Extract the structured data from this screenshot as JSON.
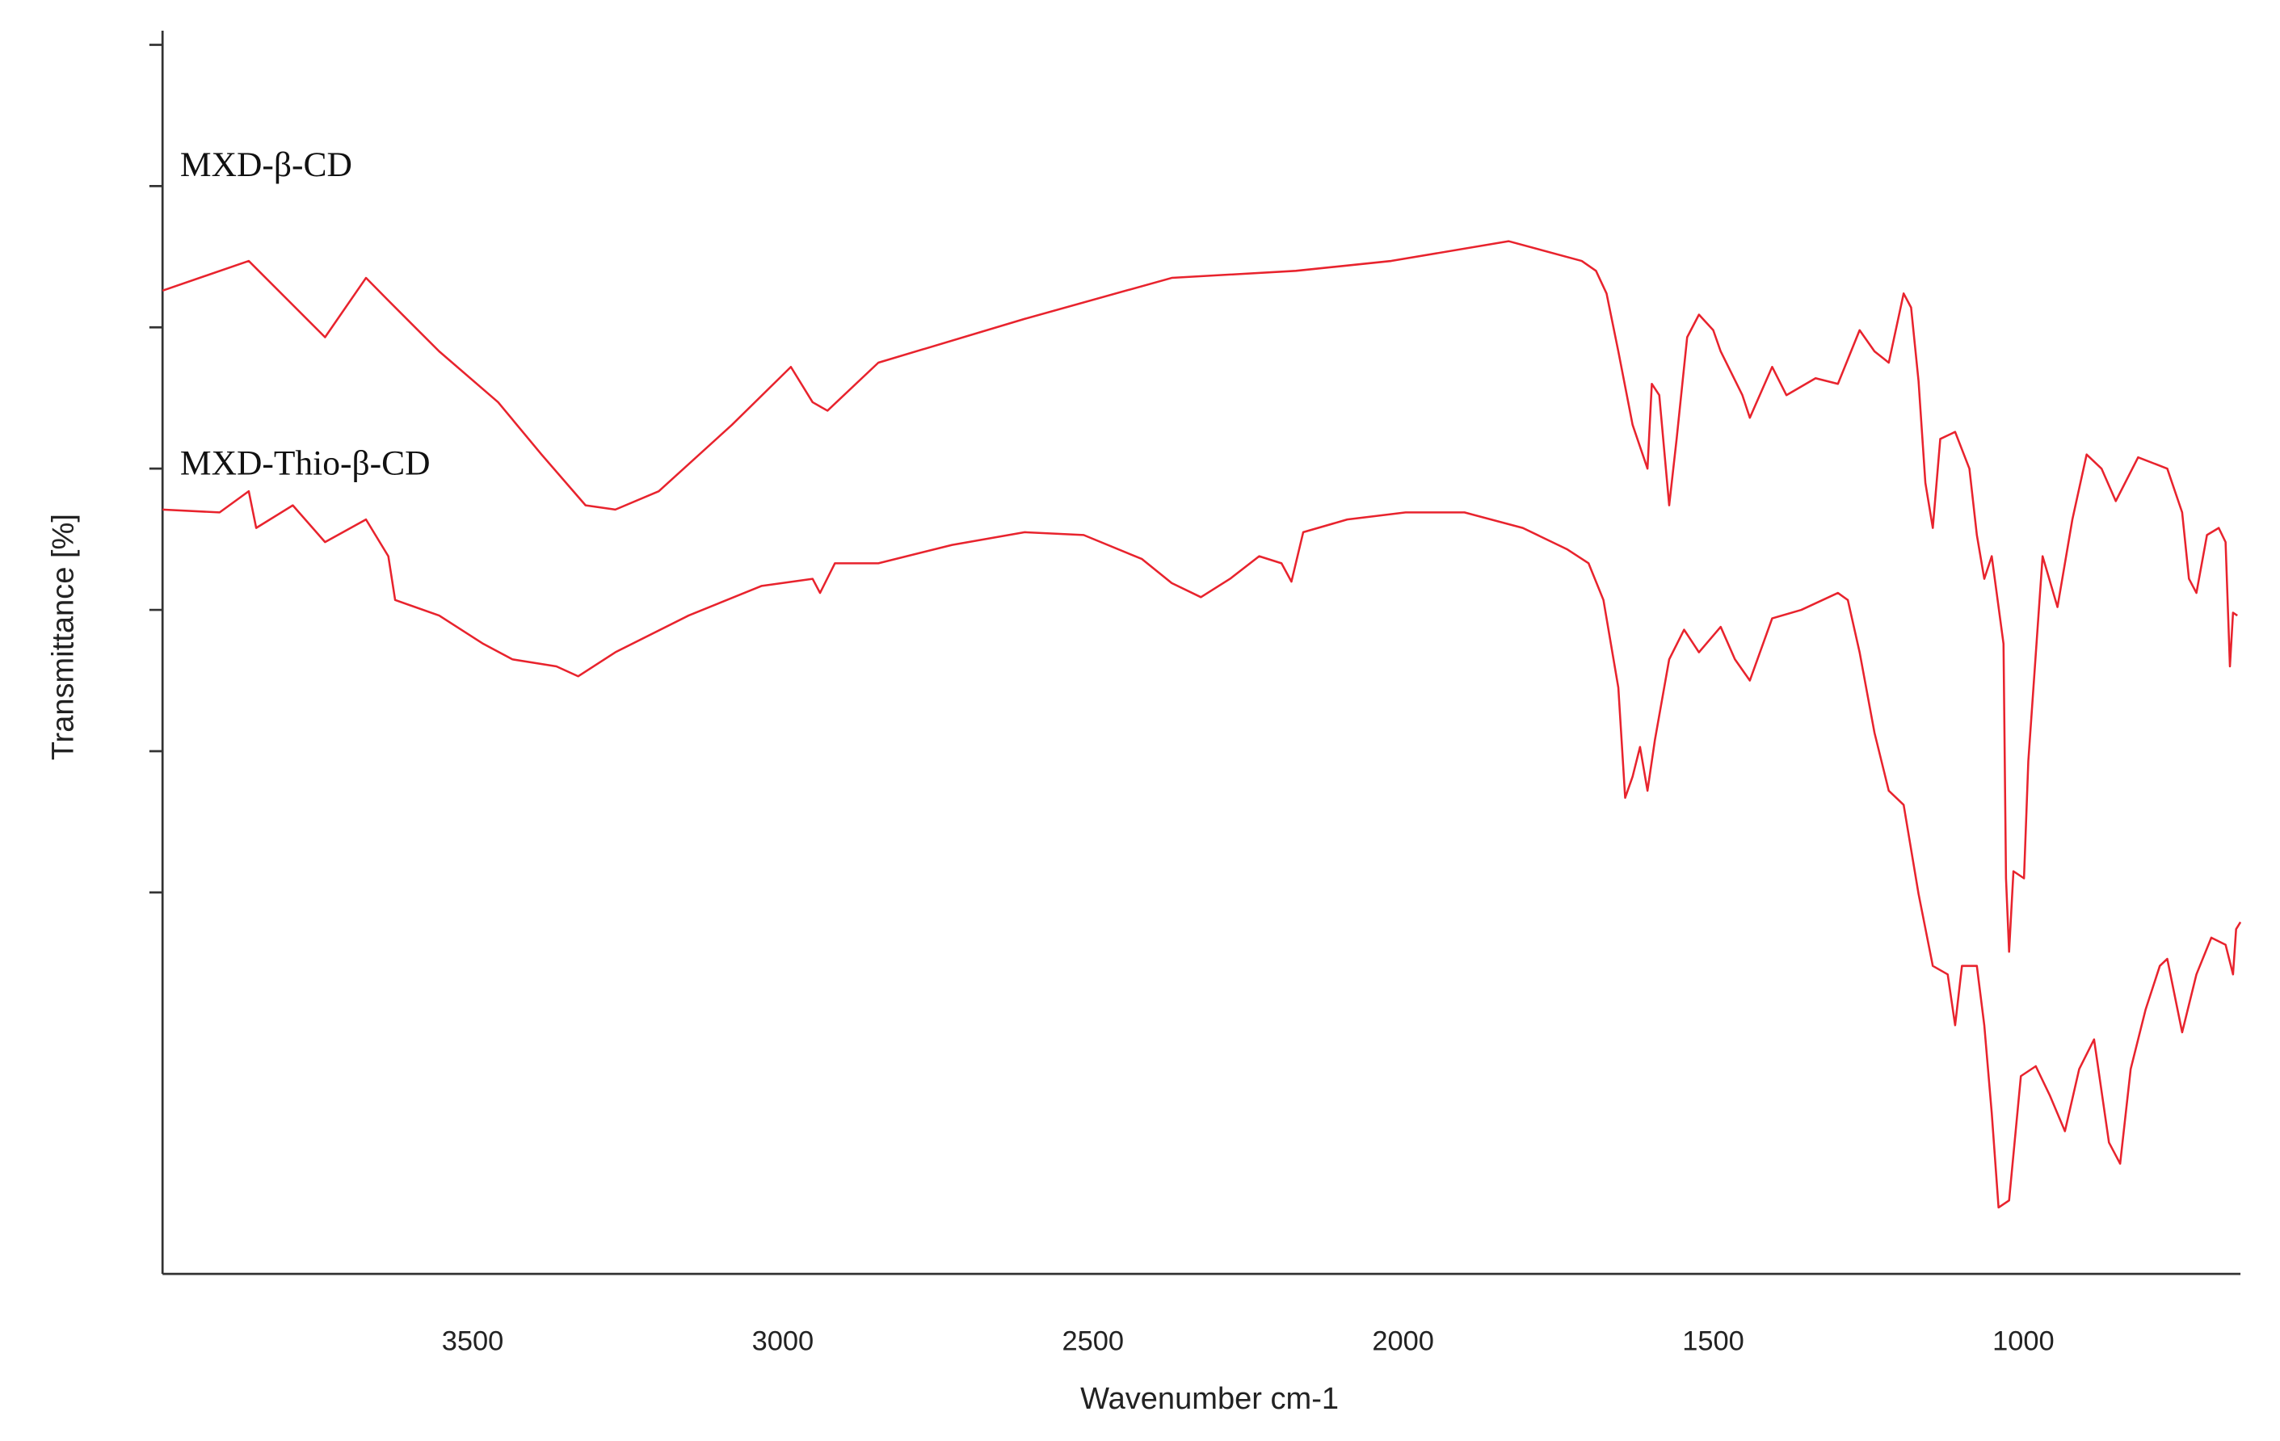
{
  "chart_data": {
    "type": "line",
    "xlabel": "Wavenumber cm-1",
    "ylabel": "Transmittance [%]",
    "xlim": [
      4000,
      650
    ],
    "xticks": [
      3500,
      3000,
      2500,
      2000,
      1500,
      1000
    ],
    "ylim": [
      0,
      88
    ],
    "yticks": [
      27,
      37,
      47,
      57,
      67,
      77,
      87
    ],
    "ytick_labels": false,
    "grid": false,
    "series": [
      {
        "name": "MXD-β-CD",
        "color": "#e8232d",
        "x": [
          4000,
          3861,
          3738,
          3672,
          3636,
          3554,
          3459,
          3389,
          3318,
          3270,
          3200,
          3082,
          2987,
          2952,
          2928,
          2846,
          2610,
          2373,
          2173,
          2019,
          1830,
          1712,
          1689,
          1672,
          1653,
          1630,
          1606,
          1599,
          1587,
          1571,
          1559,
          1542,
          1523,
          1500,
          1488,
          1453,
          1441,
          1405,
          1382,
          1335,
          1299,
          1264,
          1240,
          1217,
          1193,
          1181,
          1169,
          1158,
          1146,
          1134,
          1110,
          1087,
          1075,
          1063,
          1051,
          1032,
          1028,
          1023,
          1016,
          999,
          992,
          969,
          945,
          921,
          898,
          874,
          851,
          815,
          768,
          744,
          733,
          721,
          704,
          685,
          674,
          667,
          662,
          655
        ],
        "values": [
          69.6,
          71.7,
          66.3,
          70.5,
          68.9,
          65.3,
          61.7,
          58.0,
          54.4,
          54.1,
          55.4,
          60.1,
          64.2,
          61.7,
          61.1,
          64.5,
          67.6,
          70.5,
          71.0,
          71.7,
          73.1,
          71.7,
          71.0,
          69.4,
          65.3,
          60.1,
          57.0,
          63.0,
          62.2,
          54.4,
          59.1,
          66.3,
          67.9,
          66.8,
          65.3,
          62.2,
          60.6,
          64.2,
          62.2,
          63.4,
          63.0,
          66.8,
          65.3,
          64.5,
          69.4,
          68.4,
          63.2,
          56.0,
          52.8,
          59.1,
          59.6,
          57.0,
          52.3,
          49.2,
          50.8,
          44.6,
          28.0,
          22.8,
          28.5,
          28.0,
          36.3,
          50.8,
          47.2,
          53.4,
          58.0,
          57.0,
          54.7,
          57.8,
          57.0,
          53.9,
          49.2,
          48.2,
          52.3,
          52.8,
          51.8,
          43.0,
          46.8,
          46.6
        ]
      },
      {
        "name": "MXD-Thio-β-CD",
        "color": "#e8232d",
        "x": [
          4000,
          3908,
          3861,
          3849,
          3790,
          3738,
          3672,
          3636,
          3625,
          3554,
          3483,
          3436,
          3365,
          3330,
          3270,
          3152,
          3034,
          2952,
          2940,
          2916,
          2846,
          2727,
          2610,
          2515,
          2421,
          2373,
          2326,
          2279,
          2232,
          2196,
          2180,
          2161,
          2090,
          1996,
          1901,
          1807,
          1736,
          1701,
          1677,
          1653,
          1642,
          1630,
          1618,
          1606,
          1594,
          1571,
          1547,
          1523,
          1488,
          1465,
          1441,
          1405,
          1358,
          1299,
          1283,
          1264,
          1240,
          1217,
          1193,
          1169,
          1146,
          1122,
          1110,
          1099,
          1075,
          1063,
          1051,
          1040,
          1023,
          1004,
          980,
          957,
          933,
          910,
          886,
          862,
          844,
          827,
          803,
          780,
          768,
          744,
          721,
          697,
          674,
          662,
          657,
          650
        ],
        "values": [
          54.1,
          53.9,
          55.4,
          52.8,
          54.4,
          51.8,
          53.4,
          50.8,
          47.7,
          46.6,
          44.6,
          43.5,
          43.0,
          42.3,
          44.0,
          46.6,
          48.7,
          49.2,
          48.2,
          50.3,
          50.3,
          51.6,
          52.5,
          52.3,
          50.6,
          48.9,
          47.9,
          49.2,
          50.8,
          50.3,
          49.0,
          52.5,
          53.4,
          53.9,
          53.9,
          52.8,
          51.3,
          50.3,
          47.7,
          41.5,
          33.7,
          35.2,
          37.3,
          34.2,
          37.8,
          43.5,
          45.6,
          44.0,
          45.8,
          43.5,
          42.0,
          46.4,
          47.0,
          48.2,
          47.7,
          44.0,
          38.3,
          34.2,
          33.2,
          26.9,
          21.8,
          21.2,
          17.6,
          21.8,
          21.8,
          17.6,
          11.4,
          4.7,
          5.2,
          14.0,
          14.7,
          12.6,
          10.1,
          14.5,
          16.6,
          9.3,
          7.8,
          14.5,
          18.7,
          21.8,
          22.3,
          17.1,
          21.2,
          23.8,
          23.3,
          21.2,
          24.4,
          24.9
        ]
      }
    ]
  }
}
